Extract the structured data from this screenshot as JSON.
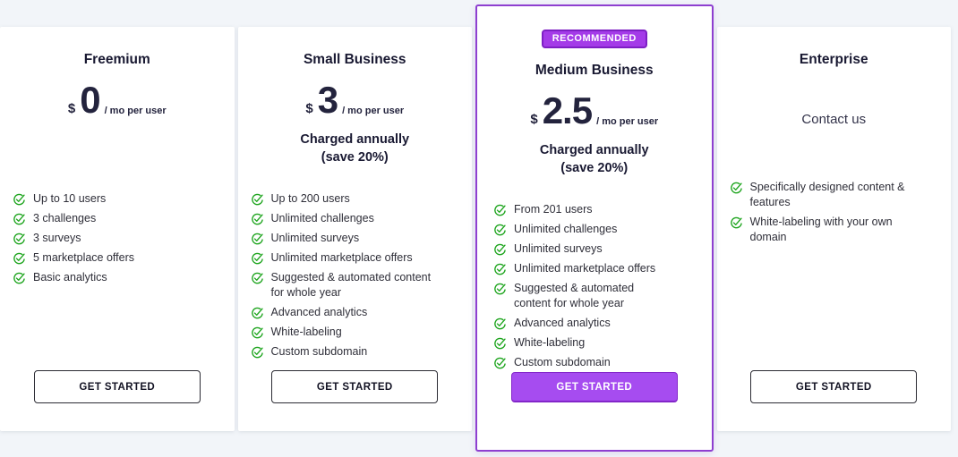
{
  "colors": {
    "page_background": "#f2f5f9",
    "card_background": "#ffffff",
    "accent_purple": "#a64cf0",
    "purple_border": "#8e3fd0",
    "badge_background": "#a43be8",
    "check_green": "#1fa51f",
    "dark_text": "#191932"
  },
  "plans": [
    {
      "name": "Freemium",
      "price": {
        "currency": "$",
        "amount": "0",
        "period": "/ mo per user"
      },
      "features": [
        "Up to 10 users",
        "3 challenges",
        "3 surveys",
        "5 marketplace offers",
        "Basic analytics"
      ],
      "cta": "GET STARTED"
    },
    {
      "name": "Small Business",
      "price": {
        "currency": "$",
        "amount": "3",
        "period": "/ mo per user"
      },
      "billing_line1": "Charged annually",
      "billing_line2": "(save 20%)",
      "features": [
        "Up to 200 users",
        "Unlimited challenges",
        "Unlimited surveys",
        "Unlimited marketplace offers",
        "Suggested & automated content for whole year",
        "Advanced analytics",
        "White-labeling",
        "Custom subdomain"
      ],
      "cta": "GET STARTED"
    },
    {
      "name": "Medium Business",
      "badge": "RECOMMENDED",
      "price": {
        "currency": "$",
        "amount": "2.5",
        "period": "/ mo per user"
      },
      "billing_line1": "Charged annually",
      "billing_line2": "(save 20%)",
      "features": [
        "From 201 users",
        "Unlimited challenges",
        "Unlimited surveys",
        "Unlimited marketplace offers",
        "Suggested & automated content for whole year",
        "Advanced analytics",
        "White-labeling",
        "Custom subdomain"
      ],
      "cta": "GET STARTED"
    },
    {
      "name": "Enterprise",
      "contact": "Contact us",
      "features": [
        "Specifically designed content & features",
        "White-labeling with your own domain"
      ],
      "cta": "GET STARTED"
    }
  ]
}
